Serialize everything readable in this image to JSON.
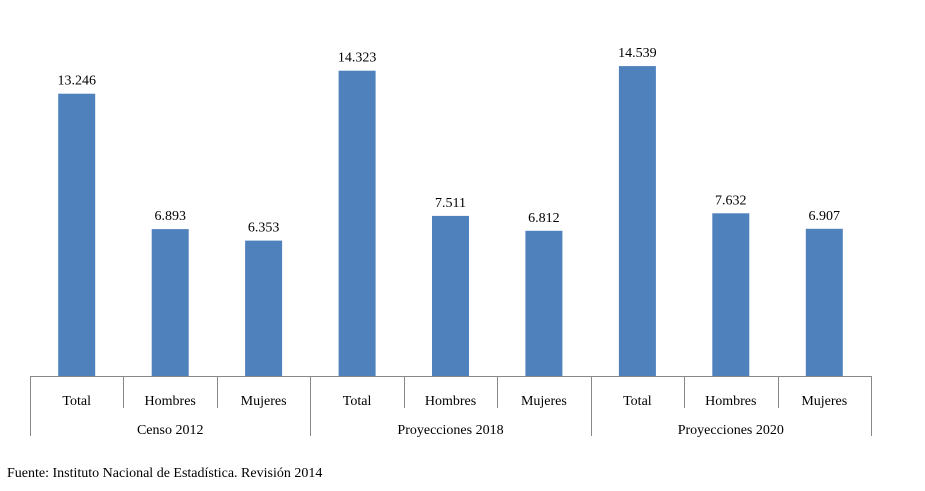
{
  "chart_data": {
    "type": "bar",
    "groups": [
      "Censo 2012",
      "Proyecciones 2018",
      "Proyecciones 2020"
    ],
    "categories": [
      "Total",
      "Hombres",
      "Mujeres"
    ],
    "values": [
      [
        13.246,
        6.893,
        6.353
      ],
      [
        14.323,
        7.511,
        6.812
      ],
      [
        14.539,
        7.632,
        6.907
      ]
    ],
    "value_labels": [
      [
        "13.246",
        "6.893",
        "6.353"
      ],
      [
        "14.323",
        "7.511",
        "6.812"
      ],
      [
        "14.539",
        "7.632",
        "6.907"
      ]
    ],
    "ylim": [
      0,
      16
    ],
    "grid": false,
    "bar_color": "#4F81BD",
    "axis_color": "#888888"
  },
  "source": "Fuente: Instituto Nacional de Estadística. Revisión 2014"
}
